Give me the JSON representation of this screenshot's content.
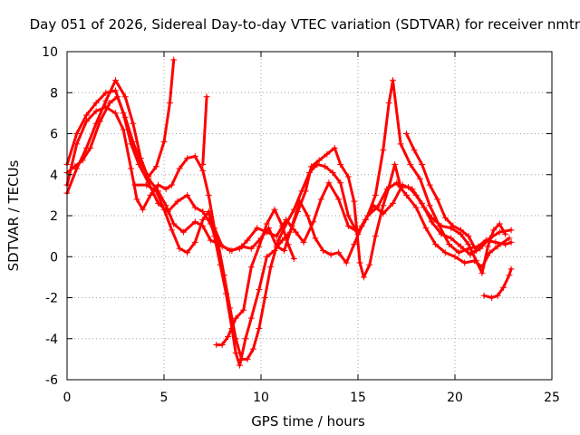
{
  "chart_data": {
    "type": "scatter",
    "title": "Day 051 of 2026, Sidereal Day-to-day VTEC variation (SDTVAR) for receiver nmtn",
    "xlabel": "GPS time / hours",
    "ylabel": "SDTVAR / TECUs",
    "xlim": [
      0,
      25
    ],
    "ylim": [
      -6,
      10
    ],
    "x_ticks": [
      "0",
      "5",
      "10",
      "15",
      "20",
      "25"
    ],
    "y_ticks": [
      "-6",
      "-4",
      "-2",
      "0",
      "2",
      "4",
      "6",
      "8",
      "10"
    ],
    "grid": true,
    "marker": "plus",
    "color": "#ff0000",
    "series": [
      {
        "points": [
          [
            0.0,
            3.1
          ],
          [
            0.5,
            4.3
          ],
          [
            1.0,
            5.3
          ],
          [
            1.5,
            6.5
          ],
          [
            2.0,
            7.6
          ],
          [
            2.5,
            8.6
          ],
          [
            3.0,
            7.8
          ],
          [
            3.4,
            6.5
          ],
          [
            3.8,
            4.8
          ],
          [
            4.2,
            3.8
          ],
          [
            4.7,
            3.2
          ],
          [
            5.1,
            2.5
          ],
          [
            5.5,
            1.6
          ],
          [
            6.0,
            1.2
          ],
          [
            6.6,
            1.7
          ],
          [
            7.0,
            1.5
          ],
          [
            7.4,
            0.8
          ],
          [
            7.9,
            0.6
          ],
          [
            8.4,
            0.3
          ],
          [
            8.9,
            0.4
          ],
          [
            9.3,
            0.8
          ],
          [
            9.8,
            1.4
          ],
          [
            10.3,
            1.2
          ],
          [
            10.8,
            1.0
          ],
          [
            11.3,
            1.8
          ],
          [
            11.8,
            1.2
          ],
          [
            12.2,
            0.7
          ],
          [
            12.7,
            1.7
          ],
          [
            13.1,
            2.8
          ],
          [
            13.5,
            3.6
          ],
          [
            14.0,
            2.8
          ],
          [
            14.5,
            1.5
          ],
          [
            15.0,
            1.2
          ],
          [
            15.5,
            2.0
          ],
          [
            16.0,
            2.4
          ],
          [
            16.5,
            3.3
          ],
          [
            17.0,
            3.6
          ],
          [
            17.5,
            3.0
          ],
          [
            18.0,
            2.4
          ],
          [
            18.5,
            1.4
          ],
          [
            19.0,
            0.6
          ],
          [
            19.5,
            0.2
          ],
          [
            20.0,
            0.0
          ],
          [
            20.5,
            -0.3
          ],
          [
            21.0,
            -0.2
          ],
          [
            21.4,
            -0.5
          ],
          [
            21.8,
            0.2
          ],
          [
            22.2,
            0.5
          ],
          [
            22.8,
            0.9
          ]
        ]
      },
      {
        "points": [
          [
            0.0,
            4.5
          ],
          [
            0.5,
            6.0
          ],
          [
            1.0,
            6.9
          ],
          [
            1.5,
            7.5
          ],
          [
            2.0,
            8.0
          ],
          [
            2.5,
            8.1
          ],
          [
            2.9,
            7.0
          ],
          [
            3.3,
            5.5
          ],
          [
            3.7,
            4.5
          ],
          [
            4.2,
            3.6
          ],
          [
            4.7,
            2.6
          ],
          [
            5.2,
            2.2
          ],
          [
            5.7,
            2.7
          ],
          [
            6.2,
            3.0
          ],
          [
            6.6,
            2.4
          ],
          [
            7.0,
            2.2
          ],
          [
            7.4,
            1.6
          ],
          [
            7.8,
            0.6
          ],
          [
            8.1,
            -0.9
          ],
          [
            8.4,
            -2.5
          ],
          [
            8.7,
            -4.0
          ],
          [
            9.0,
            -5.0
          ],
          [
            9.3,
            -5.0
          ],
          [
            9.6,
            -4.5
          ],
          [
            9.9,
            -3.5
          ],
          [
            10.2,
            -2.0
          ],
          [
            10.5,
            -0.5
          ],
          [
            10.9,
            0.8
          ],
          [
            11.3,
            1.6
          ],
          [
            11.7,
            2.3
          ],
          [
            12.1,
            3.2
          ],
          [
            12.5,
            4.1
          ],
          [
            12.9,
            4.5
          ],
          [
            13.3,
            4.4
          ],
          [
            13.7,
            4.1
          ],
          [
            14.1,
            3.6
          ],
          [
            14.5,
            2.0
          ],
          [
            15.0,
            1.1
          ],
          [
            15.4,
            1.8
          ],
          [
            15.8,
            2.5
          ],
          [
            16.3,
            2.1
          ],
          [
            16.8,
            2.6
          ],
          [
            17.3,
            3.5
          ],
          [
            17.8,
            3.3
          ],
          [
            18.3,
            2.6
          ],
          [
            18.8,
            1.7
          ],
          [
            19.3,
            1.1
          ],
          [
            19.8,
            0.9
          ],
          [
            20.3,
            0.5
          ],
          [
            20.8,
            0.1
          ],
          [
            21.3,
            0.4
          ],
          [
            21.8,
            0.9
          ],
          [
            22.3,
            1.2
          ],
          [
            22.9,
            1.3
          ]
        ]
      },
      {
        "points": [
          [
            0.0,
            3.5
          ],
          [
            0.5,
            5.5
          ],
          [
            1.0,
            6.6
          ],
          [
            1.5,
            7.1
          ],
          [
            2.0,
            7.3
          ],
          [
            2.5,
            7.0
          ],
          [
            2.9,
            6.2
          ],
          [
            3.3,
            4.3
          ],
          [
            3.6,
            2.8
          ],
          [
            3.9,
            2.3
          ],
          [
            4.3,
            3.0
          ],
          [
            4.7,
            3.5
          ],
          [
            5.1,
            3.3
          ],
          [
            5.4,
            3.5
          ],
          [
            5.8,
            4.3
          ],
          [
            6.2,
            4.8
          ],
          [
            6.6,
            4.9
          ],
          [
            7.0,
            4.2
          ],
          [
            7.3,
            3.0
          ],
          [
            7.6,
            1.4
          ],
          [
            8.0,
            0.5
          ],
          [
            8.5,
            0.3
          ],
          [
            9.0,
            0.5
          ],
          [
            9.5,
            0.4
          ],
          [
            10.0,
            0.9
          ],
          [
            10.4,
            1.4
          ],
          [
            10.8,
            0.5
          ],
          [
            11.2,
            0.3
          ],
          [
            11.6,
            1.5
          ],
          [
            12.0,
            2.7
          ],
          [
            12.4,
            2.0
          ],
          [
            12.8,
            0.9
          ],
          [
            13.2,
            0.3
          ],
          [
            13.6,
            0.1
          ],
          [
            14.0,
            0.2
          ],
          [
            14.4,
            -0.3
          ],
          [
            14.8,
            0.6
          ],
          [
            15.2,
            1.5
          ],
          [
            15.5,
            2.0
          ],
          [
            15.9,
            3.0
          ],
          [
            16.3,
            5.2
          ],
          [
            16.6,
            7.5
          ],
          [
            16.8,
            8.6
          ],
          [
            17.2,
            5.5
          ],
          [
            17.7,
            4.5
          ],
          [
            18.2,
            3.8
          ],
          [
            18.7,
            2.5
          ],
          [
            19.2,
            1.5
          ],
          [
            19.7,
            0.6
          ],
          [
            20.2,
            0.2
          ],
          [
            20.7,
            0.4
          ],
          [
            21.2,
            0.5
          ],
          [
            21.6,
            0.8
          ],
          [
            22.1,
            0.7
          ],
          [
            22.6,
            0.6
          ],
          [
            22.9,
            0.7
          ]
        ]
      },
      {
        "points": [
          [
            0.0,
            4.1
          ],
          [
            0.4,
            4.4
          ],
          [
            0.8,
            4.7
          ],
          [
            1.2,
            5.3
          ],
          [
            1.7,
            6.6
          ],
          [
            2.2,
            7.5
          ],
          [
            2.6,
            7.8
          ],
          [
            3.0,
            6.8
          ],
          [
            3.4,
            5.6
          ],
          [
            3.8,
            4.6
          ],
          [
            4.2,
            3.9
          ],
          [
            4.6,
            4.4
          ],
          [
            5.0,
            5.6
          ],
          [
            5.3,
            7.5
          ],
          [
            5.5,
            9.6
          ]
        ]
      },
      {
        "points": [
          [
            3.5,
            3.5
          ],
          [
            4.1,
            3.5
          ],
          [
            4.6,
            3.2
          ],
          [
            5.0,
            2.3
          ],
          [
            5.4,
            1.3
          ],
          [
            5.8,
            0.4
          ],
          [
            6.2,
            0.2
          ],
          [
            6.6,
            0.7
          ],
          [
            7.0,
            1.8
          ],
          [
            7.3,
            2.2
          ],
          [
            7.6,
            1.0
          ],
          [
            7.9,
            -0.4
          ],
          [
            8.2,
            -1.8
          ],
          [
            8.5,
            -3.5
          ],
          [
            8.7,
            -4.7
          ],
          [
            8.9,
            -5.3
          ],
          [
            9.2,
            -4.0
          ],
          [
            9.5,
            -3.0
          ],
          [
            9.9,
            -1.6
          ],
          [
            10.3,
            0.0
          ],
          [
            10.7,
            0.3
          ],
          [
            11.1,
            0.8
          ],
          [
            11.5,
            1.2
          ],
          [
            11.9,
            2.2
          ],
          [
            12.3,
            3.2
          ],
          [
            12.6,
            4.4
          ],
          [
            13.0,
            4.7
          ],
          [
            13.4,
            5.0
          ],
          [
            13.8,
            5.3
          ],
          [
            14.1,
            4.5
          ],
          [
            14.5,
            3.9
          ],
          [
            14.8,
            2.7
          ],
          [
            15.1,
            -0.3
          ],
          [
            15.3,
            -1.0
          ],
          [
            15.6,
            -0.4
          ],
          [
            15.9,
            1.0
          ],
          [
            16.3,
            2.5
          ],
          [
            16.6,
            3.4
          ],
          [
            16.9,
            4.5
          ],
          [
            17.2,
            3.4
          ],
          [
            17.6,
            3.4
          ],
          [
            18.0,
            3.0
          ],
          [
            18.4,
            2.4
          ],
          [
            18.8,
            1.9
          ],
          [
            19.3,
            1.5
          ],
          [
            19.8,
            1.4
          ],
          [
            20.3,
            1.1
          ],
          [
            20.7,
            0.6
          ],
          [
            21.1,
            -0.2
          ],
          [
            21.4,
            -0.8
          ],
          [
            21.7,
            0.5
          ],
          [
            22.0,
            1.3
          ],
          [
            22.3,
            1.6
          ],
          [
            22.6,
            1.1
          ]
        ]
      },
      {
        "points": [
          [
            7.0,
            4.5
          ],
          [
            7.2,
            7.8
          ]
        ]
      },
      {
        "points": [
          [
            7.7,
            -4.3
          ],
          [
            8.0,
            -4.3
          ],
          [
            8.3,
            -3.9
          ],
          [
            8.7,
            -3.0
          ],
          [
            9.1,
            -2.6
          ],
          [
            9.5,
            -0.5
          ],
          [
            9.9,
            0.5
          ],
          [
            10.3,
            1.6
          ],
          [
            10.7,
            2.3
          ],
          [
            11.1,
            1.5
          ],
          [
            11.4,
            0.6
          ],
          [
            11.7,
            -0.1
          ]
        ]
      },
      {
        "points": [
          [
            17.5,
            6.0
          ],
          [
            17.9,
            5.2
          ],
          [
            18.3,
            4.5
          ],
          [
            18.7,
            3.5
          ],
          [
            19.1,
            2.8
          ],
          [
            19.5,
            1.9
          ],
          [
            19.9,
            1.5
          ],
          [
            20.3,
            1.3
          ],
          [
            20.7,
            1.0
          ],
          [
            21.1,
            0.3
          ]
        ]
      },
      {
        "points": [
          [
            21.5,
            -1.9
          ],
          [
            21.9,
            -2.0
          ],
          [
            22.2,
            -1.9
          ],
          [
            22.5,
            -1.5
          ],
          [
            22.8,
            -0.9
          ],
          [
            22.9,
            -0.6
          ]
        ]
      }
    ]
  }
}
